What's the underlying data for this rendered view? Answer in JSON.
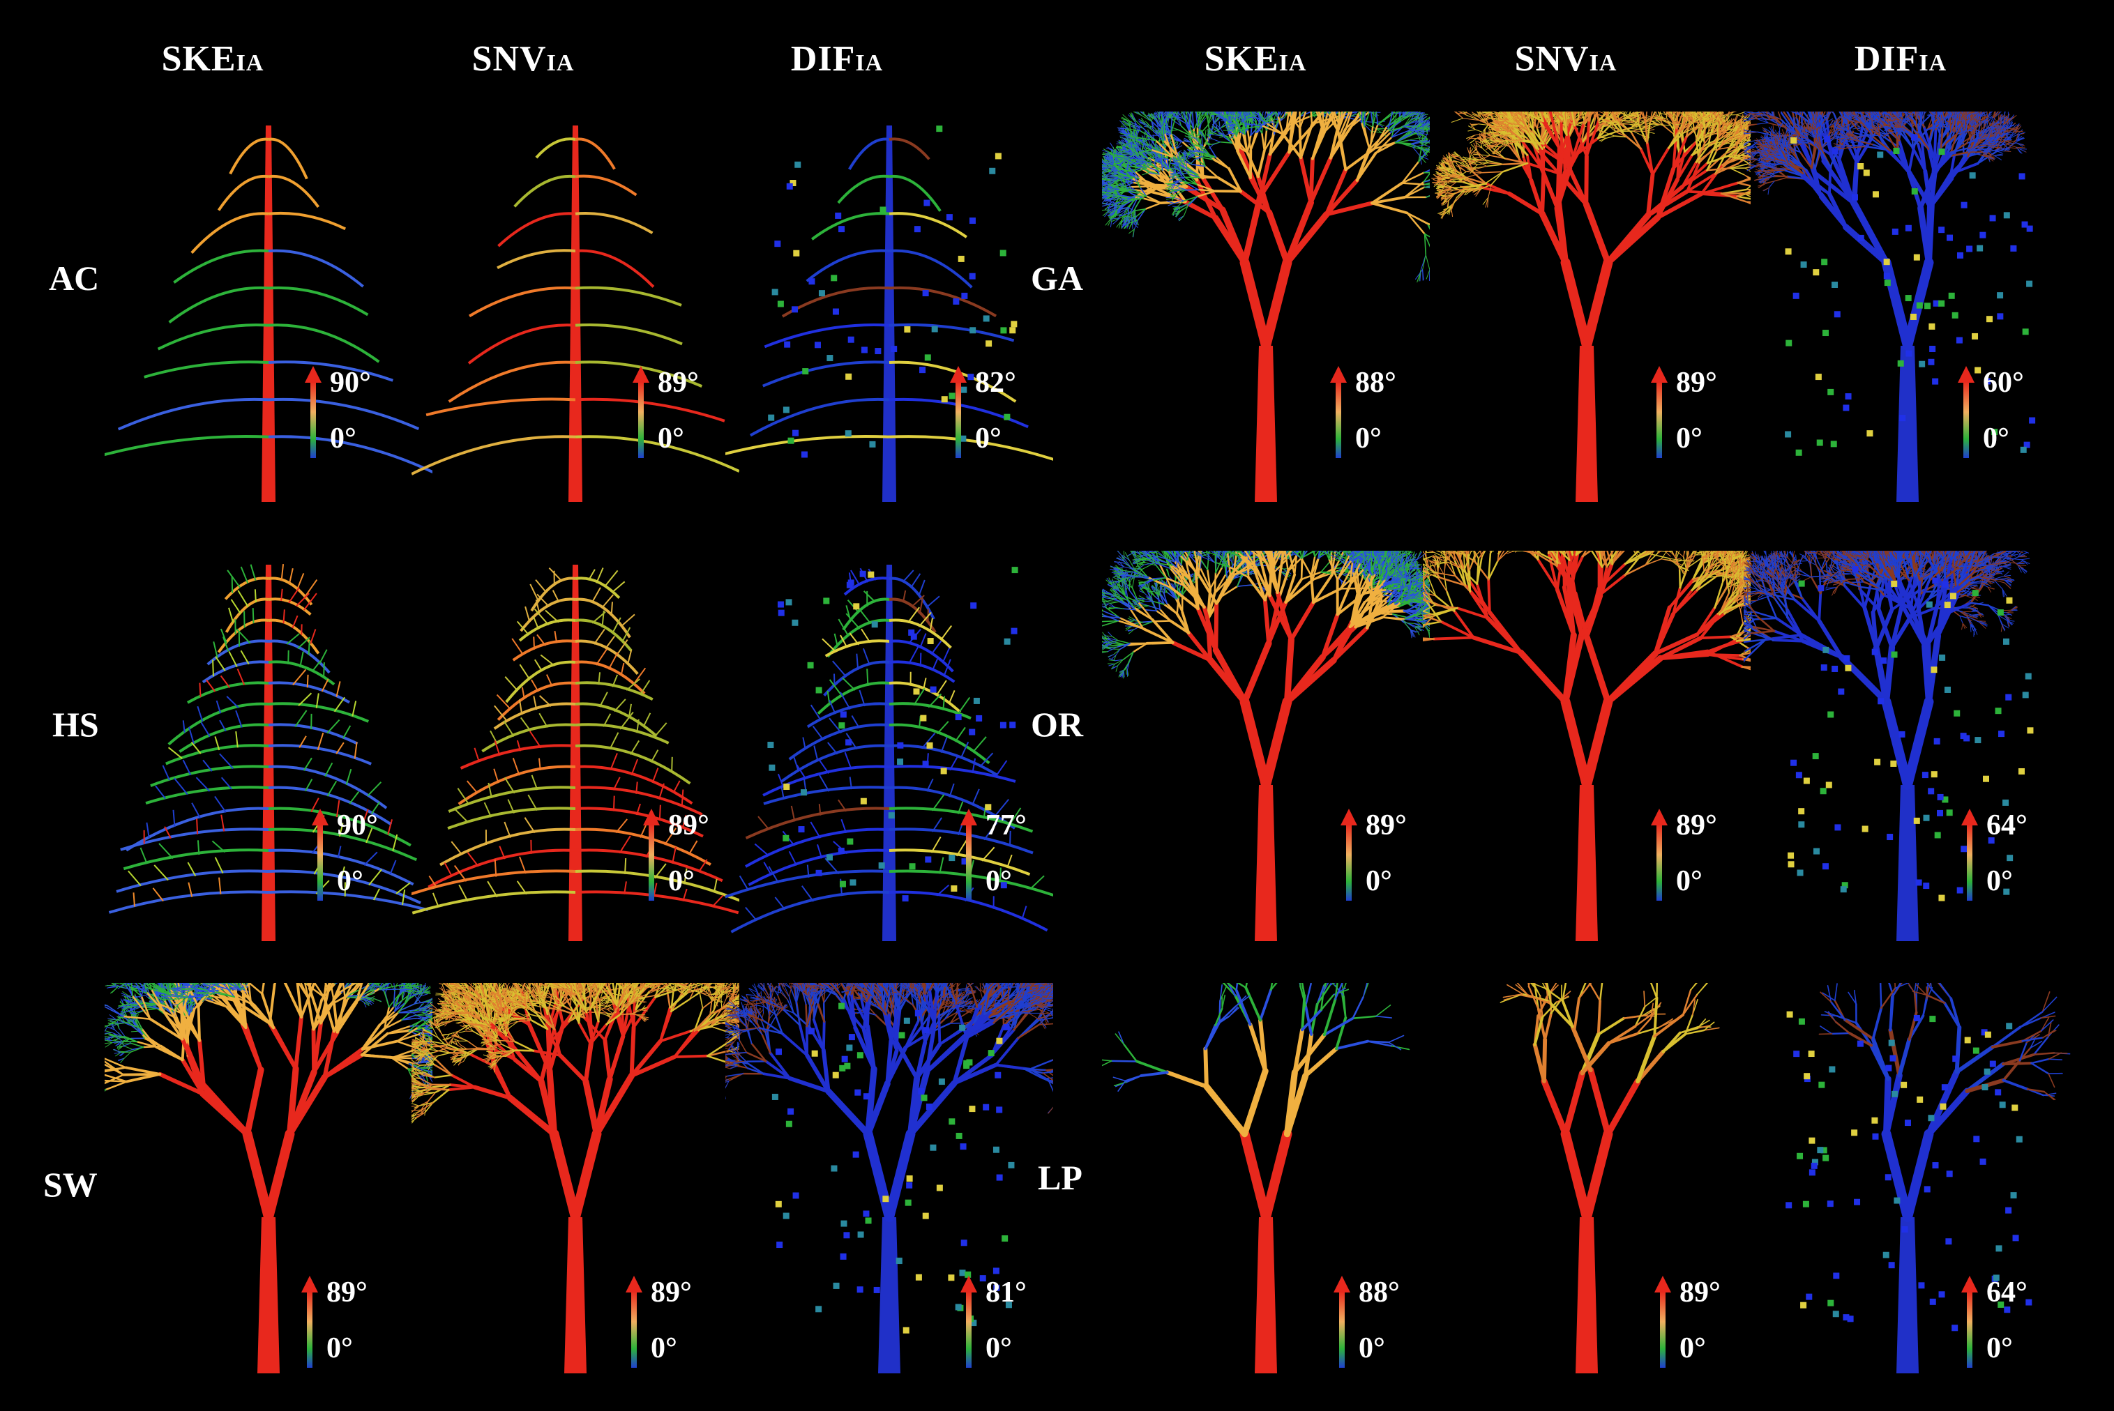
{
  "columns": [
    {
      "main": "SKE",
      "sub": "IA"
    },
    {
      "main": "SNV",
      "sub": "IA"
    },
    {
      "main": "DIF",
      "sub": "IA"
    },
    {
      "main": "SKE",
      "sub": "IA"
    },
    {
      "main": "SNV",
      "sub": "IA"
    },
    {
      "main": "DIF",
      "sub": "IA"
    }
  ],
  "rows": [
    "AC",
    "HS",
    "SW",
    "GA",
    "OR",
    "LP"
  ],
  "scales": {
    "AC": [
      "90°",
      "89°",
      "82°"
    ],
    "HS": [
      "90°",
      "89°",
      "77°"
    ],
    "SW": [
      "89°",
      "89°",
      "81°"
    ],
    "GA": [
      "88°",
      "89°",
      "60°"
    ],
    "OR": [
      "89°",
      "89°",
      "64°"
    ],
    "LP": [
      "88°",
      "89°",
      "64°"
    ]
  },
  "scale_min": "0°",
  "colors": {
    "high": "#e8281d",
    "mid_high": "#f0b060",
    "mid_low": "#2db33a",
    "low": "#1f3fd0",
    "background": "#000000"
  }
}
